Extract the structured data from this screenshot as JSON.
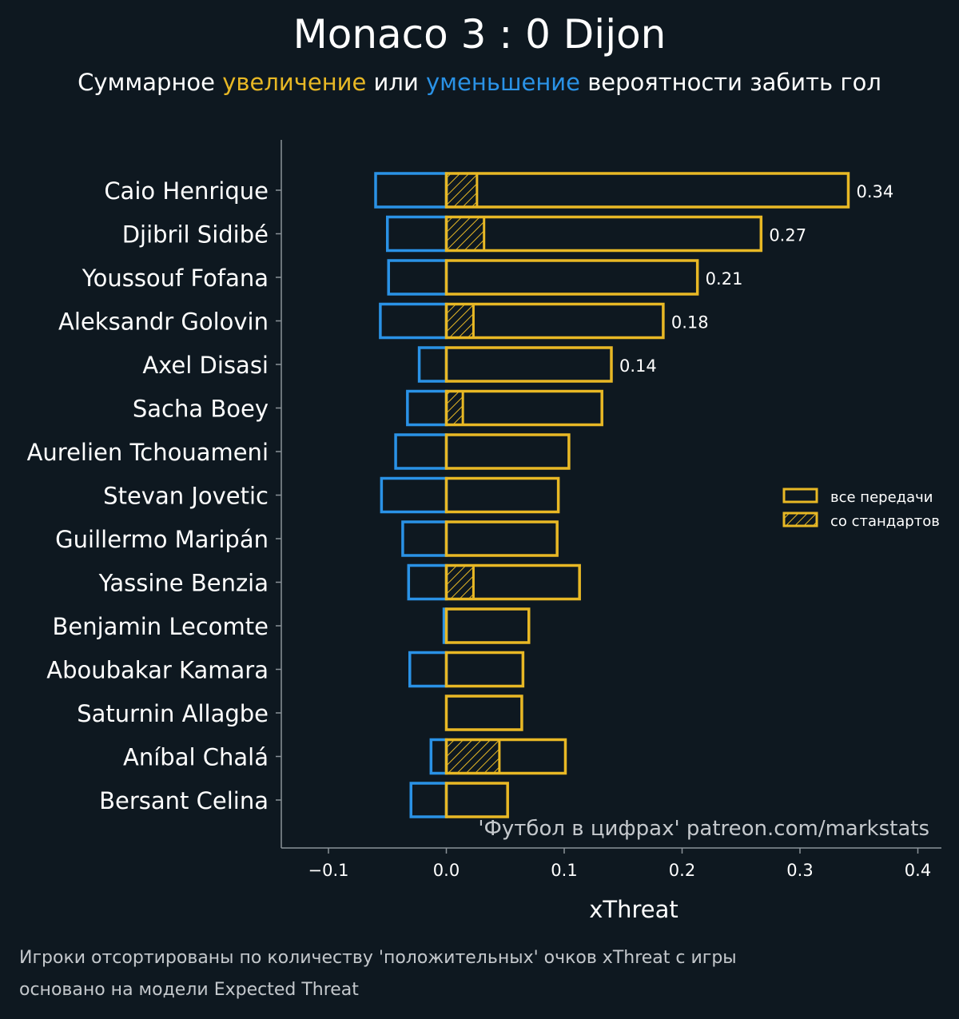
{
  "title": "Monaco 3 : 0 Dijon",
  "subtitle": {
    "prefix": "Суммарное ",
    "increase": "увеличение",
    "middle": " или ",
    "decrease": "уменьшение",
    "suffix": " вероятности забить гол"
  },
  "colors": {
    "background": "#0e1820",
    "increase": "#e8b825",
    "decrease": "#2a92e6",
    "axis": "#8a9298",
    "text": "#ffffff",
    "muted": "#c4c8cc"
  },
  "footnotes": [
    "Игроки отсортированы по количеству 'положительных' очков xThreat с игры",
    "основано на модели Expected Threat"
  ],
  "chart_data": {
    "type": "bar",
    "orientation": "horizontal",
    "xlabel": "xThreat",
    "xlim": [
      -0.14,
      0.42
    ],
    "xticks": [
      -0.1,
      0.0,
      0.1,
      0.2,
      0.3,
      0.4
    ],
    "xtick_labels": [
      "−0.1",
      "0.0",
      "0.1",
      "0.2",
      "0.3",
      "0.4"
    ],
    "grid": false,
    "legend_position": "right",
    "legend": [
      "все передачи",
      "со стандартов"
    ],
    "watermark": "'Футбол в цифрах' patreon.com/markstats",
    "categories": [
      "Caio Henrique",
      "Djibril Sidibé",
      "Youssouf Fofana",
      "Aleksandr Golovin",
      "Axel Disasi",
      "Sacha Boey",
      "Aurelien Tchouameni",
      "Stevan Jovetic",
      "Guillermo Maripán",
      "Yassine Benzia",
      "Benjamin Lecomte",
      "Aboubakar Kamara",
      "Saturnin Allagbe",
      "Aníbal Chalá",
      "Bersant Celina"
    ],
    "series": [
      {
        "name": "все передачи",
        "values": [
          0.341,
          0.267,
          0.213,
          0.184,
          0.14,
          0.132,
          0.104,
          0.095,
          0.094,
          0.113,
          0.07,
          0.065,
          0.064,
          0.101,
          0.052
        ]
      },
      {
        "name": "со стандартов",
        "values": [
          0.026,
          0.032,
          0.0,
          0.023,
          0.0,
          0.014,
          0.0,
          0.0,
          0.0,
          0.023,
          0.0,
          0.0,
          0.0,
          0.045,
          0.0
        ]
      },
      {
        "values": [
          -0.06,
          -0.05,
          -0.049,
          -0.056,
          -0.023,
          -0.033,
          -0.043,
          -0.055,
          -0.037,
          -0.032,
          -0.002,
          -0.031,
          0.0,
          -0.013,
          -0.03
        ]
      }
    ],
    "data_labels": [
      "0.34",
      "0.27",
      "0.21",
      "0.18",
      "0.14"
    ]
  }
}
